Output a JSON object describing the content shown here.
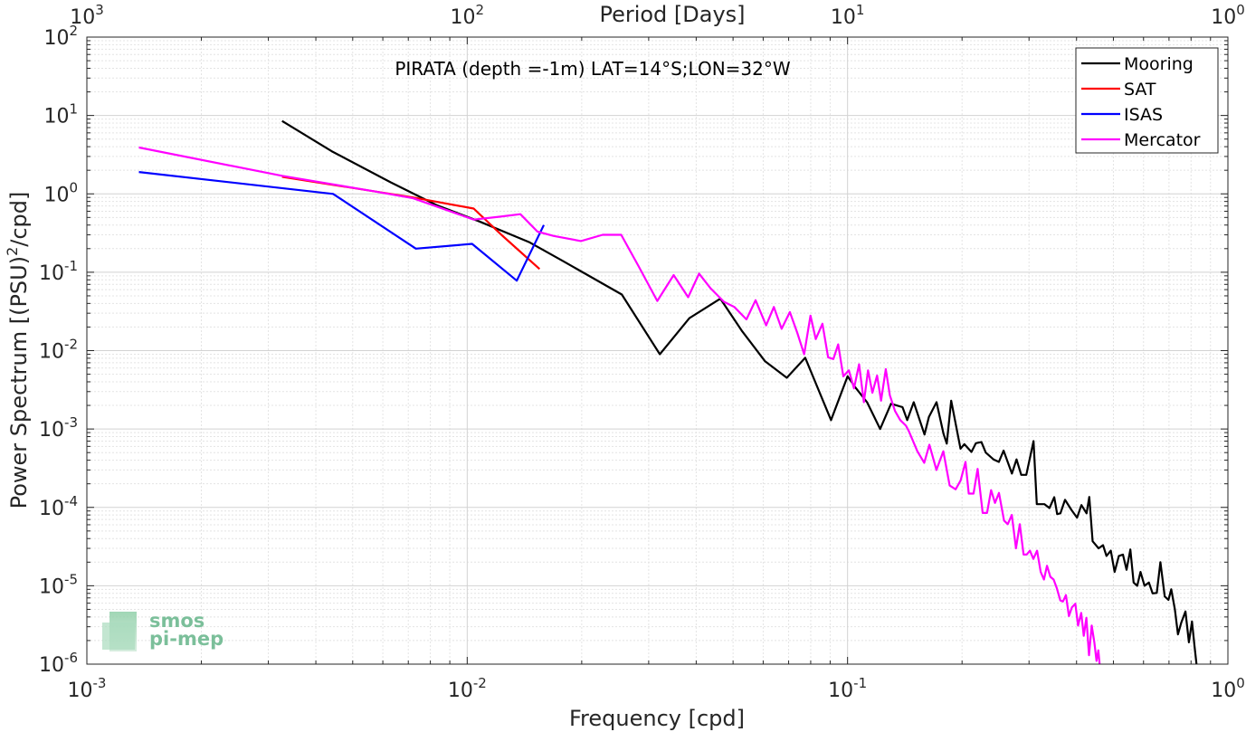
{
  "chart_data": {
    "type": "line",
    "title": "PIRATA (depth =-1m) LAT=14°S;LON=32°W",
    "xlabel": "Frequency [cpd]",
    "ylabel": "Power Spectrum [(PSU)²/cpd]",
    "ylabel_base": "Power Spectrum [(PSU)",
    "ylabel_sup": "2",
    "ylabel_tail": "/cpd]",
    "top_xlabel": "Period [Days]",
    "x_scale": "log",
    "y_scale": "log",
    "xlim": [
      0.001,
      1
    ],
    "ylim": [
      1e-06,
      100
    ],
    "grid": true,
    "legend_position": "top-right",
    "x_ticks": [
      {
        "base": "10",
        "exp": "-3",
        "v": 0.001
      },
      {
        "base": "10",
        "exp": "-2",
        "v": 0.01
      },
      {
        "base": "10",
        "exp": "-1",
        "v": 0.1
      },
      {
        "base": "10",
        "exp": "0",
        "v": 1
      }
    ],
    "top_x_ticks": [
      {
        "base": "10",
        "exp": "3",
        "v": 0.001
      },
      {
        "base": "10",
        "exp": "2",
        "v": 0.01
      },
      {
        "base": "10",
        "exp": "1",
        "v": 0.1
      },
      {
        "base": "10",
        "exp": "0",
        "v": 1
      }
    ],
    "y_ticks": [
      {
        "base": "10",
        "exp": "2",
        "v": 100
      },
      {
        "base": "10",
        "exp": "1",
        "v": 10
      },
      {
        "base": "10",
        "exp": "0",
        "v": 1
      },
      {
        "base": "10",
        "exp": "-1",
        "v": 0.1
      },
      {
        "base": "10",
        "exp": "-2",
        "v": 0.01
      },
      {
        "base": "10",
        "exp": "-3",
        "v": 0.001
      },
      {
        "base": "10",
        "exp": "-4",
        "v": 0.0001
      },
      {
        "base": "10",
        "exp": "-5",
        "v": 1e-05
      },
      {
        "base": "10",
        "exp": "-6",
        "v": 1e-06
      }
    ],
    "series": [
      {
        "name": "Mooring",
        "color": "#000000",
        "x": [
          0.00326,
          0.0044,
          0.0063,
          0.0083,
          0.0107,
          0.0146,
          0.0178,
          0.0255,
          0.0321,
          0.0384,
          0.0463,
          0.0527,
          0.0607,
          0.0692,
          0.0774,
          0.0905,
          0.1,
          0.1053,
          0.1125,
          0.1218,
          0.1301,
          0.1395,
          0.1435,
          0.1493,
          0.1593,
          0.1637,
          0.1714,
          0.1788,
          0.1823,
          0.1873,
          0.1982,
          0.2028,
          0.2117,
          0.2175,
          0.2249,
          0.2309,
          0.2419,
          0.25,
          0.2572,
          0.2705,
          0.2781,
          0.2861,
          0.2951,
          0.3083,
          0.3145,
          0.3294,
          0.3395,
          0.3495,
          0.3556,
          0.3627,
          0.3731,
          0.3882,
          0.4013,
          0.412,
          0.425,
          0.432,
          0.441,
          0.4572,
          0.4696,
          0.4794,
          0.4923,
          0.5037,
          0.5168,
          0.5296,
          0.5413,
          0.5539,
          0.5651,
          0.5776,
          0.5891,
          0.6037,
          0.6198,
          0.6339,
          0.6503,
          0.6647,
          0.6821,
          0.6976,
          0.7097,
          0.7255,
          0.7392,
          0.7542,
          0.7736,
          0.7897,
          0.8046,
          0.8172,
          0.8271,
          0.8428
        ],
        "y": [
          8.5,
          3.5,
          1.4,
          0.72,
          0.45,
          0.24,
          0.14,
          0.052,
          0.009,
          0.026,
          0.046,
          0.018,
          0.0073,
          0.0045,
          0.0081,
          0.0013,
          0.0047,
          0.0033,
          0.0022,
          0.001,
          0.0021,
          0.0019,
          0.0013,
          0.0022,
          0.00085,
          0.00143,
          0.0022,
          0.00087,
          0.00065,
          0.0023,
          0.00056,
          0.00064,
          0.00051,
          0.00066,
          0.00068,
          0.0005,
          0.00041,
          0.00038,
          0.00053,
          0.00027,
          0.00041,
          0.00026,
          0.00026,
          0.0007,
          0.00011,
          0.00011,
          9.8e-05,
          0.000135,
          8.2e-05,
          8.4e-05,
          0.000125,
          9.2e-05,
          7.4e-05,
          0.000107,
          8.4e-05,
          0.000136,
          3.7e-05,
          3e-05,
          3.3e-05,
          2.4e-05,
          2.8e-05,
          1.5e-05,
          2.4e-05,
          2.5e-05,
          1.6e-05,
          2.9e-05,
          1.1e-05,
          1e-05,
          1.5e-05,
          1e-05,
          1.1e-05,
          8e-06,
          8.1e-06,
          2e-05,
          7.3e-06,
          6.6e-06,
          9e-06,
          5e-06,
          2.4e-06,
          3.4e-06,
          4.7e-06,
          1.9e-06,
          3.5e-06,
          1.7e-06,
          1e-06,
          5.2e-07
        ]
      },
      {
        "name": "SAT",
        "color": "#ff0000",
        "x": [
          0.00326,
          0.0072,
          0.0104,
          0.0123,
          0.0155
        ],
        "y": [
          1.65,
          0.9,
          0.65,
          0.3,
          0.11
        ]
      },
      {
        "name": "ISAS",
        "color": "#0000ff",
        "x": [
          0.00137,
          0.00444,
          0.00733,
          0.0103,
          0.0135,
          0.0159
        ],
        "y": [
          1.9,
          1.0,
          0.2,
          0.23,
          0.078,
          0.4
        ]
      },
      {
        "name": "Mercator",
        "color": "#ff00ff",
        "x": [
          0.00137,
          0.00326,
          0.00574,
          0.0072,
          0.0104,
          0.0121,
          0.0138,
          0.0153,
          0.0169,
          0.0199,
          0.0227,
          0.0254,
          0.0282,
          0.0316,
          0.0349,
          0.0381,
          0.0407,
          0.0437,
          0.0473,
          0.0504,
          0.0542,
          0.0573,
          0.0611,
          0.064,
          0.0671,
          0.0705,
          0.0737,
          0.0769,
          0.0799,
          0.0825,
          0.0859,
          0.0889,
          0.0918,
          0.0945,
          0.0975,
          0.1008,
          0.104,
          0.1072,
          0.1104,
          0.1132,
          0.1162,
          0.1196,
          0.1225,
          0.126,
          0.1292,
          0.1333,
          0.1376,
          0.1424,
          0.1448,
          0.1526,
          0.1591,
          0.1641,
          0.1713,
          0.1786,
          0.1855,
          0.1924,
          0.1983,
          0.2042,
          0.2083,
          0.2144,
          0.2198,
          0.2266,
          0.2326,
          0.2384,
          0.2441,
          0.2501,
          0.2579,
          0.2637,
          0.2703,
          0.2772,
          0.2836,
          0.2902,
          0.2957,
          0.3016,
          0.3079,
          0.3149,
          0.3219,
          0.3284,
          0.3345,
          0.3414,
          0.3481,
          0.3547,
          0.3625,
          0.3684,
          0.375,
          0.3819,
          0.389,
          0.397,
          0.4037,
          0.4115,
          0.4178,
          0.4245,
          0.4313,
          0.4386,
          0.4456,
          0.4514,
          0.4563,
          0.4633
        ],
        "y": [
          3.9,
          1.7,
          1.07,
          0.88,
          0.47,
          0.51,
          0.55,
          0.33,
          0.29,
          0.25,
          0.3,
          0.3,
          0.12,
          0.043,
          0.092,
          0.048,
          0.096,
          0.062,
          0.042,
          0.036,
          0.025,
          0.044,
          0.021,
          0.036,
          0.019,
          0.031,
          0.017,
          0.009,
          0.028,
          0.014,
          0.022,
          0.0082,
          0.0078,
          0.012,
          0.0047,
          0.0056,
          0.0033,
          0.0067,
          0.0022,
          0.0056,
          0.0029,
          0.0048,
          0.0023,
          0.0058,
          0.0027,
          0.0017,
          0.0013,
          0.0011,
          0.00095,
          0.00052,
          0.00037,
          0.00063,
          0.0003,
          0.00052,
          0.00019,
          0.00017,
          0.00022,
          0.00038,
          0.00015,
          0.00015,
          0.00031,
          8.5e-05,
          8.5e-05,
          0.000166,
          0.000114,
          0.000153,
          6.8e-05,
          6.1e-05,
          8e-05,
          3e-05,
          6.1e-05,
          2.5e-05,
          2.5e-05,
          2.8e-05,
          2.2e-05,
          2.8e-05,
          1.5e-05,
          1.2e-05,
          1.8e-05,
          1.3e-05,
          1.2e-05,
          9.4e-06,
          6.5e-06,
          6.3e-06,
          7.6e-06,
          4.1e-06,
          5.3e-06,
          5.9e-06,
          3.1e-06,
          4.5e-06,
          2.3e-06,
          3.9e-06,
          1.3e-06,
          3.1e-06,
          1.9e-06,
          1.1e-06,
          1.5e-06,
          6.8e-07
        ]
      }
    ]
  },
  "logo": {
    "line1": "smos",
    "line2": "pi-mep"
  }
}
